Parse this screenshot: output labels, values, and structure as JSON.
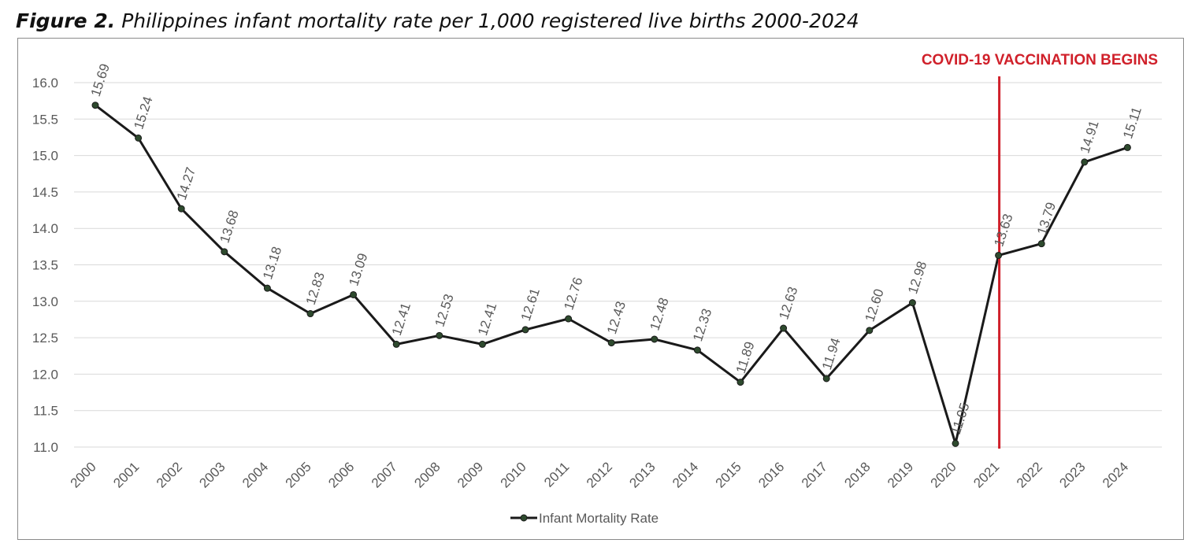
{
  "figure": {
    "label": "Figure 2.",
    "caption": "Philippines infant mortality rate per 1,000 registered live births 2000-2024"
  },
  "chart_data": {
    "type": "line",
    "title": "",
    "xlabel": "",
    "ylabel": "",
    "categories": [
      "2000",
      "2001",
      "2002",
      "2003",
      "2004",
      "2005",
      "2006",
      "2007",
      "2008",
      "2009",
      "2010",
      "2011",
      "2012",
      "2013",
      "2014",
      "2015",
      "2016",
      "2017",
      "2018",
      "2019",
      "2020",
      "2021",
      "2022",
      "2023",
      "2024"
    ],
    "series": [
      {
        "name": "Infant Mortality Rate",
        "values": [
          15.69,
          15.24,
          14.27,
          13.68,
          13.18,
          12.83,
          13.09,
          12.41,
          12.53,
          12.41,
          12.61,
          12.76,
          12.43,
          12.48,
          12.33,
          11.89,
          12.63,
          11.94,
          12.6,
          12.98,
          11.05,
          13.63,
          13.79,
          14.91,
          15.11
        ],
        "data_labels": [
          "15.69",
          "15.24",
          "14.27",
          "13.68",
          "13.18",
          "12.83",
          "13.09",
          "12.41",
          "12.53",
          "12.41",
          "12.61",
          "12.76",
          "12.43",
          "12.48",
          "12.33",
          "11.89",
          "12.63",
          "11.94",
          "12.60",
          "12.98",
          "11.05",
          "13.63",
          "13.79",
          "14.91",
          "15.11"
        ],
        "color": "#1a1a1a",
        "marker_color": "#2e4a2e"
      }
    ],
    "ylim": [
      11.0,
      16.0
    ],
    "yticks": [
      "11.0",
      "11.5",
      "12.0",
      "12.5",
      "13.0",
      "13.5",
      "14.0",
      "14.5",
      "15.0",
      "15.5",
      "16.0"
    ],
    "grid": true,
    "legend_position": "bottom",
    "annotation": {
      "text": "COVID-19 VACCINATION BEGINS",
      "at_category": "2021",
      "color": "#d0202a"
    }
  }
}
